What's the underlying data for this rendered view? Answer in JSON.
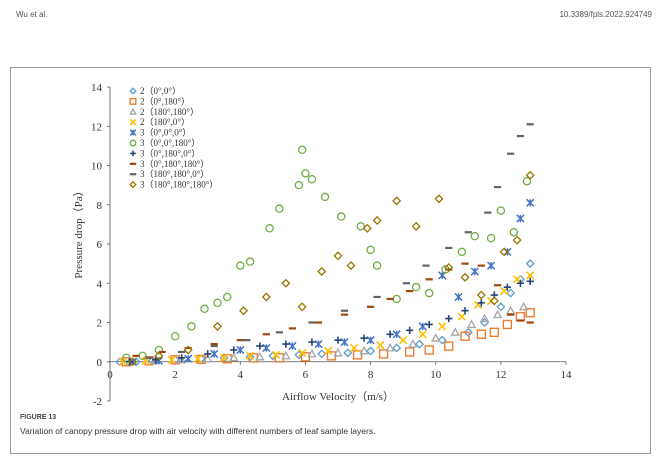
{
  "header": {
    "left": "Wu et al.",
    "right": "10.3389/fpls.2022.924749"
  },
  "figure": {
    "label": "FIGURE 13",
    "caption": "Variation of canopy pressure drop with air velocity with different numbers of leaf sample layers."
  },
  "chart_data": {
    "type": "scatter",
    "xlabel": "Airflow Velocity（m/s）",
    "ylabel": "Pressure drop（Pa）",
    "xlim": [
      0,
      14
    ],
    "ylim": [
      -2,
      14
    ],
    "x_ticks": [
      "0",
      "2",
      "4",
      "6",
      "8",
      "10",
      "12",
      "14"
    ],
    "y_ticks": [
      "-2",
      "0",
      "2",
      "4",
      "6",
      "8",
      "10",
      "12",
      "14"
    ],
    "legend_position": "top-left",
    "series": [
      {
        "name": "2（0°,0°）",
        "marker": "diamond",
        "color": "#5b9bd5",
        "points": [
          [
            0.3,
            0
          ],
          [
            0.8,
            0
          ],
          [
            1.3,
            0.05
          ],
          [
            2.0,
            0.1
          ],
          [
            2.8,
            0.15
          ],
          [
            3.5,
            0.2
          ],
          [
            4.3,
            0.25
          ],
          [
            5.0,
            0.3
          ],
          [
            5.8,
            0.35
          ],
          [
            6.5,
            0.4
          ],
          [
            7.3,
            0.45
          ],
          [
            8.0,
            0.55
          ],
          [
            8.8,
            0.7
          ],
          [
            9.5,
            0.9
          ],
          [
            10.2,
            1.1
          ],
          [
            11.0,
            1.5
          ],
          [
            11.5,
            2.0
          ],
          [
            12.0,
            2.8
          ],
          [
            12.3,
            3.5
          ],
          [
            12.6,
            4.2
          ],
          [
            12.9,
            5.0
          ]
        ]
      },
      {
        "name": "2（0°,180°）",
        "marker": "square",
        "color": "#ed7d31",
        "points": [
          [
            0.5,
            0
          ],
          [
            1.2,
            0.05
          ],
          [
            2.0,
            0.1
          ],
          [
            2.8,
            0.12
          ],
          [
            3.6,
            0.15
          ],
          [
            4.4,
            0.2
          ],
          [
            5.2,
            0.2
          ],
          [
            6.0,
            0.25
          ],
          [
            6.8,
            0.3
          ],
          [
            7.6,
            0.35
          ],
          [
            8.4,
            0.4
          ],
          [
            9.2,
            0.5
          ],
          [
            9.8,
            0.6
          ],
          [
            10.4,
            0.8
          ],
          [
            10.9,
            1.3
          ],
          [
            11.4,
            1.4
          ],
          [
            11.8,
            1.5
          ],
          [
            12.2,
            1.9
          ],
          [
            12.6,
            2.3
          ],
          [
            12.9,
            2.5
          ]
        ]
      },
      {
        "name": "2（180°,180°）",
        "marker": "triangle",
        "color": "#a5a5a5",
        "points": [
          [
            0.6,
            0
          ],
          [
            1.4,
            0.05
          ],
          [
            2.2,
            0.1
          ],
          [
            3.0,
            0.15
          ],
          [
            3.8,
            0.2
          ],
          [
            4.6,
            0.25
          ],
          [
            5.4,
            0.3
          ],
          [
            6.2,
            0.4
          ],
          [
            7.0,
            0.45
          ],
          [
            7.8,
            0.55
          ],
          [
            8.6,
            0.7
          ],
          [
            9.3,
            0.9
          ],
          [
            10.0,
            1.2
          ],
          [
            10.6,
            1.5
          ],
          [
            11.1,
            1.9
          ],
          [
            11.5,
            2.2
          ],
          [
            11.9,
            2.4
          ],
          [
            12.3,
            2.6
          ],
          [
            12.7,
            2.8
          ]
        ]
      },
      {
        "name": "2（180°,0°）",
        "marker": "x",
        "color": "#ffc000",
        "points": [
          [
            0.4,
            0
          ],
          [
            1.1,
            0.05
          ],
          [
            1.9,
            0.1
          ],
          [
            2.7,
            0.15
          ],
          [
            3.5,
            0.2
          ],
          [
            4.3,
            0.3
          ],
          [
            5.1,
            0.35
          ],
          [
            5.9,
            0.45
          ],
          [
            6.7,
            0.55
          ],
          [
            7.5,
            0.7
          ],
          [
            8.3,
            0.85
          ],
          [
            9.0,
            1.1
          ],
          [
            9.6,
            1.4
          ],
          [
            10.2,
            1.8
          ],
          [
            10.8,
            2.3
          ],
          [
            11.3,
            2.9
          ],
          [
            11.7,
            3.1
          ],
          [
            12.1,
            3.6
          ],
          [
            12.5,
            4.2
          ],
          [
            12.9,
            4.4
          ]
        ]
      },
      {
        "name": "3（0°,0°,0°）",
        "marker": "asterisk",
        "color": "#4472c4",
        "points": [
          [
            0.7,
            0
          ],
          [
            1.5,
            0.05
          ],
          [
            2.4,
            0.15
          ],
          [
            3.2,
            0.4
          ],
          [
            4.0,
            0.6
          ],
          [
            4.8,
            0.7
          ],
          [
            5.6,
            0.8
          ],
          [
            6.4,
            0.9
          ],
          [
            7.2,
            1.0
          ],
          [
            8.0,
            1.1
          ],
          [
            8.8,
            1.4
          ],
          [
            9.6,
            1.8
          ],
          [
            10.2,
            4.4
          ],
          [
            10.7,
            3.3
          ],
          [
            11.2,
            4.6
          ],
          [
            11.7,
            4.9
          ],
          [
            12.2,
            5.6
          ],
          [
            12.6,
            7.3
          ],
          [
            12.9,
            8.1
          ]
        ]
      },
      {
        "name": "3（0°,0°,180°）",
        "marker": "circle",
        "color": "#70ad47",
        "points": [
          [
            0.5,
            0.2
          ],
          [
            1.0,
            0.3
          ],
          [
            1.5,
            0.6
          ],
          [
            2.0,
            1.3
          ],
          [
            2.5,
            1.8
          ],
          [
            2.9,
            2.7
          ],
          [
            3.3,
            3.0
          ],
          [
            3.6,
            3.3
          ],
          [
            4.0,
            4.9
          ],
          [
            4.3,
            5.1
          ],
          [
            4.9,
            6.8
          ],
          [
            5.2,
            7.8
          ],
          [
            5.8,
            9.0
          ],
          [
            6.0,
            9.6
          ],
          [
            6.2,
            9.3
          ],
          [
            5.9,
            10.8
          ],
          [
            6.6,
            8.4
          ],
          [
            7.1,
            7.4
          ],
          [
            7.7,
            6.9
          ],
          [
            8.0,
            5.7
          ],
          [
            8.2,
            4.9
          ],
          [
            8.8,
            3.2
          ],
          [
            9.4,
            3.8
          ],
          [
            9.8,
            3.5
          ],
          [
            10.3,
            4.7
          ],
          [
            10.8,
            5.6
          ],
          [
            11.2,
            6.4
          ],
          [
            11.7,
            6.3
          ],
          [
            12.0,
            7.7
          ],
          [
            12.4,
            6.6
          ],
          [
            12.8,
            9.2
          ]
        ]
      },
      {
        "name": "3（0°,180°,0°）",
        "marker": "plus",
        "color": "#264478",
        "points": [
          [
            0.6,
            0
          ],
          [
            1.4,
            0.1
          ],
          [
            2.2,
            0.2
          ],
          [
            3.0,
            0.4
          ],
          [
            3.8,
            0.6
          ],
          [
            4.6,
            0.8
          ],
          [
            5.4,
            0.9
          ],
          [
            6.2,
            1.0
          ],
          [
            7.0,
            1.1
          ],
          [
            7.8,
            1.2
          ],
          [
            8.6,
            1.4
          ],
          [
            9.2,
            1.6
          ],
          [
            9.8,
            1.9
          ],
          [
            10.4,
            2.2
          ],
          [
            10.9,
            2.6
          ],
          [
            11.4,
            3.0
          ],
          [
            11.8,
            3.4
          ],
          [
            12.2,
            3.8
          ],
          [
            12.6,
            4.0
          ],
          [
            12.9,
            4.1
          ]
        ]
      },
      {
        "name": "3（0°,180°,180°）",
        "marker": "dash",
        "color": "#9e480e",
        "points": [
          [
            0.8,
            0.3
          ],
          [
            1.6,
            0.5
          ],
          [
            2.4,
            0.7
          ],
          [
            3.2,
            0.9
          ],
          [
            4.0,
            1.1
          ],
          [
            4.8,
            1.4
          ],
          [
            5.6,
            1.7
          ],
          [
            6.4,
            2.0
          ],
          [
            7.2,
            2.4
          ],
          [
            8.0,
            2.8
          ],
          [
            8.6,
            3.2
          ],
          [
            9.2,
            3.6
          ],
          [
            9.8,
            4.2
          ],
          [
            10.4,
            4.7
          ],
          [
            10.9,
            5.0
          ],
          [
            11.4,
            4.9
          ],
          [
            11.9,
            3.9
          ],
          [
            12.3,
            2.4
          ],
          [
            12.6,
            2.1
          ],
          [
            12.9,
            2.0
          ]
        ]
      },
      {
        "name": "3（180°,180°,0°）",
        "marker": "dash",
        "color": "#636363",
        "points": [
          [
            1.2,
            0.2
          ],
          [
            2.2,
            0.5
          ],
          [
            3.2,
            0.8
          ],
          [
            4.2,
            1.1
          ],
          [
            5.2,
            1.5
          ],
          [
            6.2,
            2.0
          ],
          [
            7.2,
            2.6
          ],
          [
            8.2,
            3.3
          ],
          [
            9.1,
            4.0
          ],
          [
            9.7,
            4.9
          ],
          [
            10.4,
            5.8
          ],
          [
            11.0,
            6.6
          ],
          [
            11.6,
            7.6
          ],
          [
            11.9,
            8.9
          ],
          [
            12.3,
            10.6
          ],
          [
            12.6,
            11.5
          ],
          [
            12.9,
            12.1
          ]
        ]
      },
      {
        "name": "3（180°,180°,180°）",
        "marker": "diamond",
        "color": "#997300",
        "points": [
          [
            0.7,
            0
          ],
          [
            1.5,
            0.3
          ],
          [
            2.4,
            0.6
          ],
          [
            3.3,
            1.8
          ],
          [
            4.1,
            2.6
          ],
          [
            4.8,
            3.3
          ],
          [
            5.4,
            4.0
          ],
          [
            5.9,
            2.8
          ],
          [
            6.5,
            4.6
          ],
          [
            7.0,
            5.4
          ],
          [
            7.4,
            4.9
          ],
          [
            7.9,
            6.8
          ],
          [
            8.2,
            7.2
          ],
          [
            8.8,
            8.2
          ],
          [
            9.4,
            6.9
          ],
          [
            10.1,
            8.3
          ],
          [
            10.4,
            4.8
          ],
          [
            10.9,
            4.3
          ],
          [
            11.4,
            3.4
          ],
          [
            11.8,
            3.1
          ],
          [
            12.1,
            5.6
          ],
          [
            12.5,
            6.2
          ],
          [
            12.9,
            9.5
          ]
        ]
      }
    ]
  }
}
